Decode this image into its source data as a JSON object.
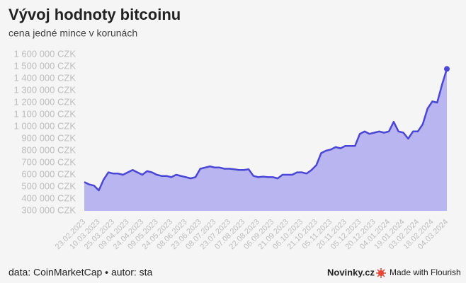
{
  "chart_data": {
    "type": "area",
    "title": "Vývoj hodnoty bitcoinu",
    "subtitle": "cena jedné mince v korunách",
    "footer": "data: CoinMarketCap • autor: sta",
    "brand": "Novinky.cz",
    "credit": "Made with Flourish",
    "color": "#4a46d6",
    "fill_color": "#b9b5f1",
    "grid": false,
    "ylim": [
      300000,
      1600000
    ],
    "yticks": [
      {
        "value": 300000,
        "label": "300 000 CZK"
      },
      {
        "value": 400000,
        "label": "400 000 CZK"
      },
      {
        "value": 500000,
        "label": "500 000 CZK"
      },
      {
        "value": 600000,
        "label": "600 000 CZK"
      },
      {
        "value": 700000,
        "label": "700 000 CZK"
      },
      {
        "value": 800000,
        "label": "800 000 CZK"
      },
      {
        "value": 900000,
        "label": "900 000 CZK"
      },
      {
        "value": 1000000,
        "label": "1 000 000 CZK"
      },
      {
        "value": 1100000,
        "label": "1 100 000 CZK"
      },
      {
        "value": 1200000,
        "label": "1 200 000 CZK"
      },
      {
        "value": 1300000,
        "label": "1 300 000 CZK"
      },
      {
        "value": 1400000,
        "label": "1 400 000 CZK"
      },
      {
        "value": 1500000,
        "label": "1 500 000 CZK"
      },
      {
        "value": 1600000,
        "label": "1 600 000 CZK"
      }
    ],
    "xlim": [
      "23.02.2023",
      "04.03.2024"
    ],
    "xticks": [
      "23.02.2023",
      "10.03.2023",
      "25.03.2023",
      "09.04.2023",
      "24.04.2023",
      "09.05.2023",
      "24.05.2023",
      "08.06.2023",
      "23.06.2023",
      "08.07.2023",
      "23.07.2023",
      "07.08.2023",
      "22.08.2023",
      "06.09.2023",
      "21.09.2023",
      "06.10.2023",
      "21.10.2023",
      "05.11.2023",
      "20.11.2023",
      "05.12.2023",
      "20.12.2023",
      "04.01.2024",
      "19.01.2024",
      "03.02.2024",
      "18.02.2024",
      "04.03.2024"
    ],
    "x": [
      "23.02.2023",
      "28.02.2023",
      "05.03.2023",
      "10.03.2023",
      "15.03.2023",
      "20.03.2023",
      "25.03.2023",
      "30.03.2023",
      "04.04.2023",
      "09.04.2023",
      "14.04.2023",
      "19.04.2023",
      "24.04.2023",
      "29.04.2023",
      "04.05.2023",
      "09.05.2023",
      "14.05.2023",
      "19.05.2023",
      "24.05.2023",
      "29.05.2023",
      "03.06.2023",
      "08.06.2023",
      "13.06.2023",
      "18.06.2023",
      "23.06.2023",
      "28.06.2023",
      "03.07.2023",
      "08.07.2023",
      "13.07.2023",
      "18.07.2023",
      "23.07.2023",
      "28.07.2023",
      "02.08.2023",
      "07.08.2023",
      "12.08.2023",
      "17.08.2023",
      "22.08.2023",
      "27.08.2023",
      "01.09.2023",
      "06.09.2023",
      "11.09.2023",
      "16.09.2023",
      "21.09.2023",
      "26.09.2023",
      "01.10.2023",
      "06.10.2023",
      "11.10.2023",
      "16.10.2023",
      "21.10.2023",
      "26.10.2023",
      "31.10.2023",
      "05.11.2023",
      "10.11.2023",
      "15.11.2023",
      "20.11.2023",
      "25.11.2023",
      "30.11.2023",
      "05.12.2023",
      "10.12.2023",
      "15.12.2023",
      "20.12.2023",
      "25.12.2023",
      "30.12.2023",
      "04.01.2024",
      "09.01.2024",
      "14.01.2024",
      "19.01.2024",
      "24.01.2024",
      "29.01.2024",
      "03.02.2024",
      "08.02.2024",
      "13.02.2024",
      "18.02.2024",
      "23.02.2024",
      "28.02.2024",
      "04.03.2024"
    ],
    "values": [
      540000,
      520000,
      510000,
      470000,
      560000,
      620000,
      610000,
      610000,
      600000,
      620000,
      640000,
      620000,
      600000,
      630000,
      620000,
      600000,
      590000,
      590000,
      580000,
      600000,
      590000,
      580000,
      570000,
      580000,
      650000,
      660000,
      670000,
      660000,
      660000,
      650000,
      650000,
      645000,
      640000,
      640000,
      645000,
      590000,
      580000,
      585000,
      580000,
      580000,
      570000,
      600000,
      600000,
      600000,
      620000,
      620000,
      610000,
      640000,
      680000,
      780000,
      800000,
      810000,
      830000,
      820000,
      840000,
      840000,
      840000,
      940000,
      960000,
      940000,
      950000,
      960000,
      950000,
      960000,
      1040000,
      960000,
      950000,
      900000,
      960000,
      960000,
      1020000,
      1150000,
      1210000,
      1200000,
      1350000,
      1480000
    ]
  }
}
